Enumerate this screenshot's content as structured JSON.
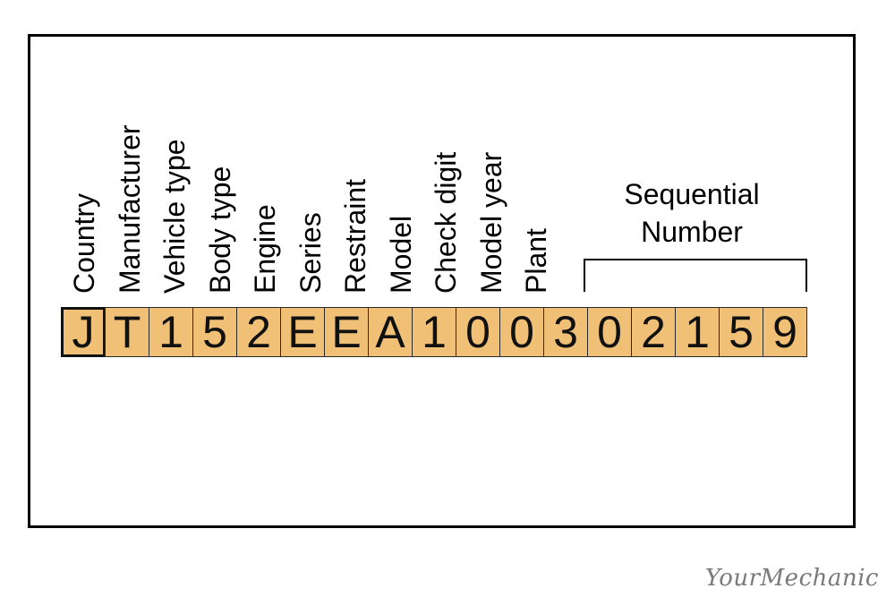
{
  "labels": [
    "Country",
    "Manufacturer",
    "Vehicle type",
    "Body type",
    "Engine",
    "Series",
    "Restraint",
    "Model",
    "Check digit",
    "Model year",
    "Plant"
  ],
  "characters": [
    "J",
    "T",
    "1",
    "5",
    "2",
    "E",
    "E",
    "A",
    "1",
    "0",
    "0",
    "3",
    "0",
    "2",
    "1",
    "5",
    "9"
  ],
  "sequential": {
    "line1": "Sequential",
    "line2": "Number"
  },
  "logo": "YourMechanic",
  "colors": {
    "cell_fill": "#efc076",
    "border": "#000000"
  }
}
